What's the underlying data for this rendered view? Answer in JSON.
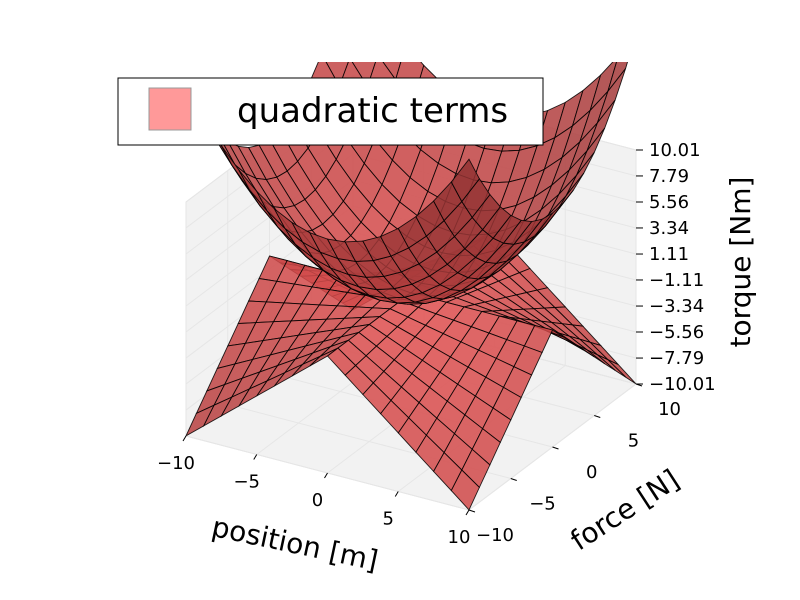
{
  "chart_data": {
    "type": "surface",
    "legend": {
      "label": "quadratic terms",
      "placement": "upper-left",
      "color": "#ff9999"
    },
    "surface_color": "#ff5a5a",
    "mesh_color": "#000000",
    "series": [
      {
        "name": "quadratic terms",
        "surface": "bowl",
        "equation": "torque = 0.1 * (position^2 + force^2)"
      },
      {
        "name": "quadratic terms",
        "surface": "saddle",
        "equation": "torque = -0.1 * |position| * |force|"
      }
    ],
    "axes": {
      "x": {
        "label": "position [m]",
        "range": [
          -10,
          10
        ],
        "ticks": [
          "−10",
          "−5",
          "0",
          "5",
          "10"
        ]
      },
      "y": {
        "label": "force [N]",
        "range": [
          -10,
          10
        ],
        "ticks": [
          "−10",
          "−5",
          "0",
          "5",
          "10"
        ]
      },
      "z": {
        "label": "torque [Nm]",
        "range": [
          -10.01,
          10.01
        ],
        "ticks": [
          "−10.01",
          "−7.79",
          "−5.56",
          "−3.34",
          "−1.11",
          "1.11",
          "3.34",
          "5.56",
          "7.79",
          "10.01"
        ]
      }
    },
    "grid": true
  }
}
